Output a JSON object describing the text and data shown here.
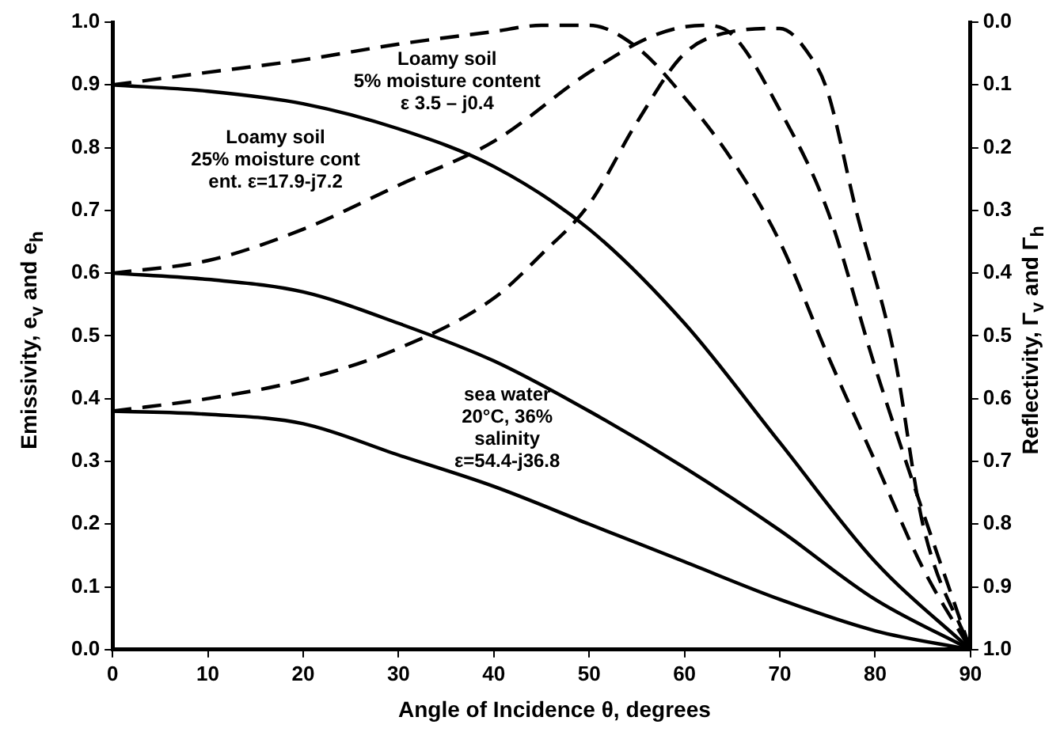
{
  "chart_data": {
    "type": "line",
    "xlabel": "Angle of Incidence θ, degrees",
    "ylabel": "Emissivity, e$_{v}$ and e$_{h}$",
    "y2label": "Reflectivity, Γ$_{v}$ and Γ$_{h}$",
    "xlim": [
      0,
      90
    ],
    "xticks": [
      0,
      10,
      20,
      30,
      40,
      50,
      60,
      70,
      80,
      90
    ],
    "ylim": [
      0,
      1
    ],
    "yticks": [
      {
        "value": 0,
        "label": "0.0"
      },
      0.1,
      0.2,
      0.3,
      0.4,
      0.5,
      0.6,
      0.7,
      0.8,
      0.9,
      {
        "value": 1,
        "label": "1.0"
      }
    ],
    "y2lim": [
      1,
      0
    ],
    "y2ticks": [
      {
        "value": 0,
        "label": "0.0"
      },
      0.1,
      0.2,
      0.3,
      0.4,
      0.5,
      0.6,
      0.7,
      0.8,
      0.9,
      {
        "value": 1,
        "label": "1.0"
      }
    ],
    "grid": false,
    "legend": false,
    "marker": "none",
    "series": [
      {
        "color": "#000000",
        "line_style": "solid",
        "x": [
          0,
          10,
          20,
          30,
          40,
          50,
          60,
          70,
          80,
          90
        ],
        "values": [
          0.9,
          0.89,
          0.87,
          0.83,
          0.77,
          0.67,
          0.52,
          0.33,
          0.14,
          0
        ]
      },
      {
        "color": "#000000",
        "line_style": "solid",
        "x": [
          0,
          10,
          20,
          30,
          40,
          50,
          60,
          70,
          80,
          90
        ],
        "values": [
          0.6,
          0.59,
          0.57,
          0.52,
          0.46,
          0.38,
          0.29,
          0.19,
          0.08,
          0
        ]
      },
      {
        "color": "#000000",
        "line_style": "solid",
        "x": [
          0,
          10,
          20,
          30,
          40,
          50,
          60,
          70,
          80,
          90
        ],
        "values": [
          0.38,
          0.375,
          0.36,
          0.31,
          0.26,
          0.2,
          0.14,
          0.08,
          0.03,
          0
        ]
      },
      {
        "color": "#000000",
        "line_style": "dashed",
        "x": [
          0,
          10,
          20,
          30,
          40,
          45,
          50,
          55,
          60,
          65,
          70,
          75,
          80,
          85,
          90
        ],
        "values": [
          0.9,
          0.92,
          0.94,
          0.965,
          0.985,
          0.995,
          0.995,
          0.96,
          0.88,
          0.78,
          0.65,
          0.47,
          0.3,
          0.13,
          0
        ]
      },
      {
        "color": "#000000",
        "line_style": "dashed",
        "x": [
          0,
          10,
          20,
          30,
          40,
          50,
          57,
          62,
          65,
          70,
          75,
          80,
          85,
          90
        ],
        "values": [
          0.6,
          0.62,
          0.67,
          0.74,
          0.81,
          0.92,
          0.98,
          0.995,
          0.98,
          0.86,
          0.7,
          0.45,
          0.22,
          0
        ]
      },
      {
        "color": "#000000",
        "line_style": "dashed",
        "x": [
          0,
          10,
          20,
          30,
          40,
          45,
          50,
          55,
          60,
          65,
          70,
          73,
          75,
          78,
          82,
          85,
          90
        ],
        "values": [
          0.38,
          0.4,
          0.43,
          0.48,
          0.56,
          0.63,
          0.71,
          0.84,
          0.95,
          0.985,
          0.99,
          0.95,
          0.89,
          0.7,
          0.47,
          0.2,
          0
        ]
      }
    ],
    "annotations": [
      "Loamy soil\n5% moisture content\nε 3.5 – j0.4",
      "Loamy soil\n25% moisture cont\nent. ε=17.9-j7.2",
      "sea water\n20°C, 36%\nsalinity\nε=54.4-j36.8"
    ]
  }
}
